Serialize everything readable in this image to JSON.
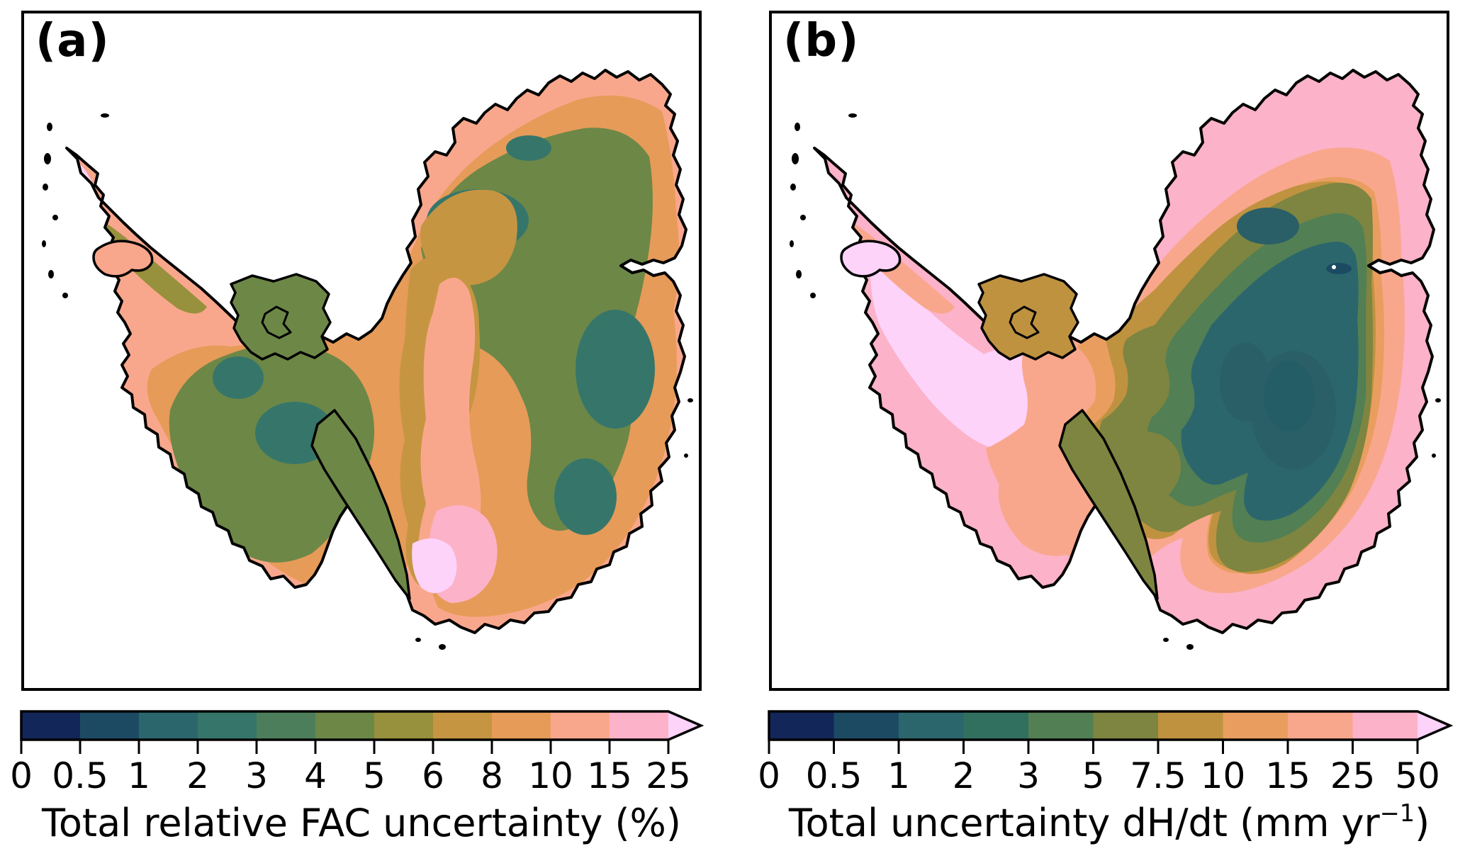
{
  "figure": {
    "description": "Two-panel map figure of Antarctica showing spatial uncertainty fields with discrete colorbars extending beyond the maximum value (right-pointing arrow).",
    "background": "#ffffff"
  },
  "palette": {
    "navy": "#132659",
    "blue_teal": "#1d4a63",
    "teal": "#2c666d",
    "teal_green_a": "#36766a",
    "teal_green_b": "#31705f",
    "green_a": "#4d7e5b",
    "green_b": "#527f54",
    "olive_green_a": "#6d8747",
    "olive_b": "#7d8540",
    "olive_yellow_a": "#97903c",
    "mustard_a": "#c69542",
    "mustard_b": "#bf9240",
    "orange_a": "#e69b58",
    "orange_b": "#e99e60",
    "salmon": "#f9a78c",
    "pink": "#fcb2c8",
    "light_pink": "#fdd3fa",
    "dark_teal_patch": "#2a5f68",
    "deep_teal_patch": "#255d66",
    "coast_line": "#000000"
  },
  "panels": [
    {
      "label": "(a)",
      "colorbar": {
        "title": "Total relative FAC uncertainty (%)",
        "ticks": [
          "0",
          "0.5",
          "1",
          "2",
          "3",
          "4",
          "5",
          "6",
          "8",
          "10",
          "15",
          "25"
        ],
        "colors": [
          "#132659",
          "#1d4a63",
          "#2c666d",
          "#36766a",
          "#4d7e5b",
          "#6d8747",
          "#97903c",
          "#c69542",
          "#e69b58",
          "#f9a78c",
          "#fcb2c8"
        ],
        "arrow_color": "#fdd3fa"
      }
    },
    {
      "label": "(b)",
      "colorbar": {
        "title_prefix": "Total uncertainty dH/dt (mm yr",
        "title_sup": "−1",
        "title_suffix": ")",
        "ticks": [
          "0",
          "0.5",
          "1",
          "2",
          "3",
          "5",
          "7.5",
          "10",
          "15",
          "25",
          "50"
        ],
        "colors": [
          "#132659",
          "#1d4a63",
          "#2c666d",
          "#31705f",
          "#527f54",
          "#7d8540",
          "#bf9240",
          "#e99e60",
          "#f9a78c",
          "#fcb2c8"
        ],
        "arrow_color": "#fdd3fa"
      }
    }
  ],
  "chart_data": [
    {
      "type": "heatmap",
      "panel": "a",
      "title": "Total relative FAC uncertainty (%)",
      "variable": "Total relative FAC uncertainty",
      "units": "%",
      "region": "Antarctica (polar stereographic map)",
      "colorbar_boundaries": [
        0,
        0.5,
        1,
        2,
        3,
        4,
        5,
        6,
        8,
        10,
        15,
        25
      ],
      "colorbar_extend": "max",
      "colorbar_colors": [
        "#132659",
        "#1d4a63",
        "#2c666d",
        "#36766a",
        "#4d7e5b",
        "#6d8747",
        "#97903c",
        "#c69542",
        "#e69b58",
        "#f9a78c",
        "#fcb2c8"
      ],
      "over_color": "#fdd3fa",
      "legend_position": "bottom",
      "value_summary": {
        "east_antarctica_interior": "3-6 %",
        "central_pole_to_ross_band": "8-25 % (pale salmon/pink band)",
        "ross_shelf_vicinity": "15 to >25 % (pink to light pink)",
        "coastal_margins": "8-15 % (orange/salmon fringe)",
        "antarctic_peninsula": "10 to >25 %",
        "west_antarctica": "4-8 % (olive green)"
      }
    },
    {
      "type": "heatmap",
      "panel": "b",
      "title": "Total uncertainty dH/dt (mm yr⁻¹)",
      "variable": "Total uncertainty dH/dt",
      "units": "mm yr⁻¹",
      "region": "Antarctica (polar stereographic map)",
      "colorbar_boundaries": [
        0,
        0.5,
        1,
        2,
        3,
        5,
        7.5,
        10,
        15,
        25,
        50
      ],
      "colorbar_extend": "max",
      "colorbar_colors": [
        "#132659",
        "#1d4a63",
        "#2c666d",
        "#31705f",
        "#527f54",
        "#7d8540",
        "#bf9240",
        "#e99e60",
        "#f9a78c",
        "#fcb2c8"
      ],
      "over_color": "#fdd3fa",
      "legend_position": "bottom",
      "value_summary": {
        "east_antarctica_interior": "0.5-3 mm yr⁻¹ (dark teal core)",
        "mid_elevation_ring": "3-10 mm yr⁻¹ (green to mustard rings)",
        "coastal_margins": "15-50 mm yr⁻¹ (orange/salmon/pink fringe)",
        "west_antarctica_and_ronne": "25 to >50 mm yr⁻¹ (pink to light pink)",
        "antarctic_peninsula": ">50 mm yr⁻¹ (light pink)"
      }
    }
  ]
}
